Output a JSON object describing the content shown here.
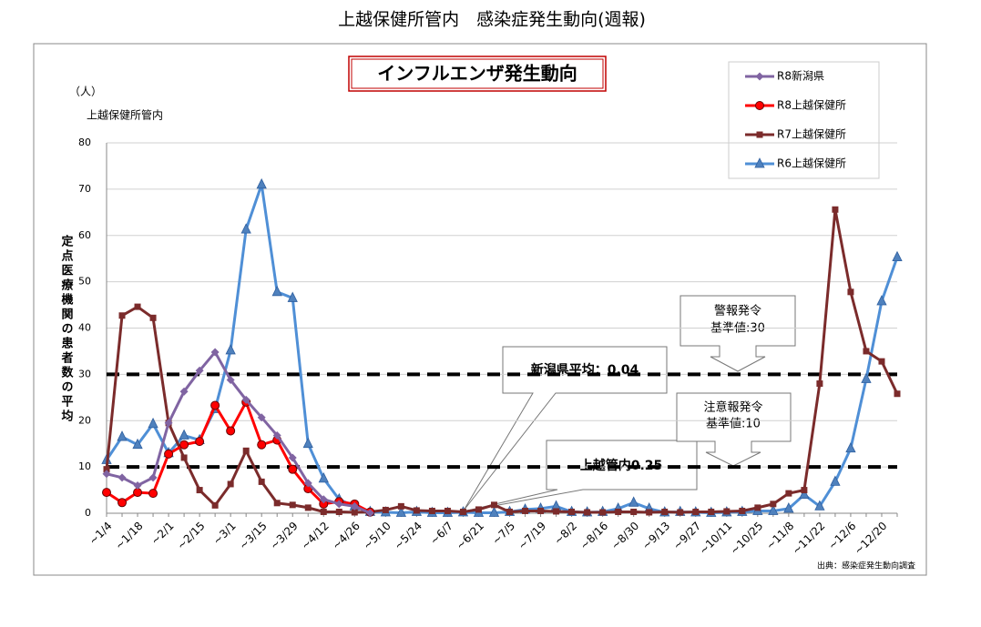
{
  "chart_data": {
    "type": "line",
    "page_title": "上越保健所管内　感染症発生動向(週報)",
    "title": "インフルエンザ発生動向",
    "y_unit": "（人）",
    "y_sublabel": "上越保健所管内",
    "ylabel": "定点医療機関の患者数の平均",
    "source": "出典：感染症発生動向調査",
    "categories": [
      "~1/4",
      null,
      "~1/18",
      null,
      "~2/1",
      null,
      "~2/15",
      null,
      "~3/1",
      null,
      "~3/15",
      null,
      "~3/29",
      null,
      "~4/12",
      null,
      "~4/26",
      null,
      "~5/10",
      null,
      "~5/24",
      null,
      "~6/7",
      null,
      "~6/21",
      null,
      "~7/5",
      null,
      "~7/19",
      null,
      "~8/2",
      null,
      "~8/16",
      null,
      "~8/30",
      null,
      "~9/13",
      null,
      "~9/27",
      null,
      "~10/11",
      null,
      "~10/25",
      null,
      "~11/8",
      null,
      "~11/22",
      null,
      "~12/6",
      null,
      "~12/20",
      null
    ],
    "ylim": [
      0,
      80
    ],
    "yticks": [
      0,
      10,
      20,
      30,
      40,
      50,
      60,
      70,
      80
    ],
    "grid": true,
    "reference_lines": [
      30,
      10
    ],
    "annotations": [
      "新潟県平均：0.04",
      "上越管内0.25",
      "警報発令",
      "基準値:30",
      "注意報発令",
      "基準値:10"
    ],
    "legend": "upper-right",
    "series": [
      {
        "name": "R8新潟県",
        "color": "#8064a2",
        "marker": "diamond",
        "values": [
          8.5,
          7.7,
          6.0,
          7.7,
          19.5,
          26.3,
          30.8,
          34.8,
          28.8,
          24.5,
          20.7,
          16.8,
          12.0,
          6.5,
          3.0,
          2.0,
          1.5,
          0.04,
          null,
          null,
          null,
          null,
          null,
          null,
          null,
          null,
          null,
          null,
          null,
          null,
          null,
          null,
          null,
          null,
          null,
          null,
          null,
          null,
          null,
          null,
          null,
          null,
          null,
          null,
          null,
          null,
          null,
          null,
          null,
          null,
          null,
          null
        ]
      },
      {
        "name": "R8上越保健所",
        "color": "#ff0000",
        "marker": "circle",
        "values": [
          4.5,
          2.3,
          4.5,
          4.3,
          12.8,
          14.8,
          15.5,
          23.3,
          17.8,
          24.0,
          14.8,
          15.8,
          9.5,
          5.3,
          2.0,
          2.5,
          2.0,
          0.25,
          null,
          null,
          null,
          null,
          null,
          null,
          null,
          null,
          null,
          null,
          null,
          null,
          null,
          null,
          null,
          null,
          null,
          null,
          null,
          null,
          null,
          null,
          null,
          null,
          null,
          null,
          null,
          null,
          null,
          null,
          null,
          null,
          null,
          null
        ]
      },
      {
        "name": "R7上越保健所",
        "color": "#7b2b2b",
        "marker": "square",
        "values": [
          9.5,
          42.7,
          44.6,
          42.2,
          19.5,
          12.0,
          5.0,
          1.7,
          6.3,
          13.5,
          6.8,
          2.2,
          1.8,
          1.2,
          0.3,
          0.3,
          0.2,
          0.3,
          0.7,
          1.5,
          0.6,
          0.5,
          0.5,
          0.3,
          0.8,
          1.8,
          0.3,
          0.5,
          0.5,
          0.4,
          0.3,
          0.2,
          0.2,
          0.3,
          0.3,
          0.2,
          0.3,
          0.2,
          0.3,
          0.3,
          0.4,
          0.5,
          1.2,
          2.0,
          4.3,
          5.0,
          28.0,
          65.6,
          47.8,
          35.0,
          32.8,
          25.8
        ]
      },
      {
        "name": "R6上越保健所",
        "color": "#4f8fd6",
        "marker": "triangle",
        "values": [
          11.5,
          16.5,
          14.8,
          19.3,
          13.0,
          16.8,
          15.8,
          22.5,
          35.2,
          61.3,
          71.0,
          47.8,
          46.5,
          15.0,
          7.5,
          3.0,
          1.5,
          0.3,
          0.2,
          0.1,
          0.3,
          0.1,
          0.1,
          0.2,
          0.1,
          0.1,
          0.3,
          0.8,
          1.0,
          1.5,
          0.3,
          0.2,
          0.3,
          1.0,
          2.3,
          1.0,
          0.2,
          0.3,
          0.2,
          0.1,
          0.2,
          0.3,
          0.5,
          0.5,
          1.0,
          4.0,
          1.5,
          6.8,
          14.0,
          29.0,
          45.8,
          55.3
        ]
      }
    ]
  }
}
